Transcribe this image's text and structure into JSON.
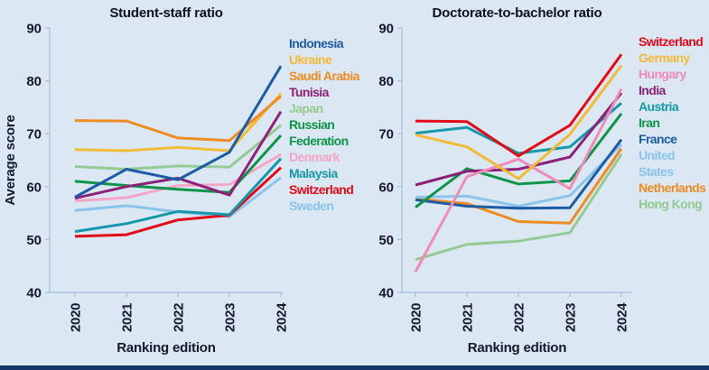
{
  "page": {
    "background": "#dbe8f4",
    "footer_bar_color": "#16356b",
    "axis_line_color": "#a3bfd9",
    "axis_text_color": "#15172b"
  },
  "chart_data": [
    {
      "type": "line",
      "title": "Student-staff ratio",
      "xlabel": "Ranking edition",
      "ylabel": "Average score",
      "x_ticks": [
        "2020",
        "2021",
        "2022",
        "2023",
        "2024"
      ],
      "y_ticks": [
        90,
        80,
        70,
        60,
        50,
        40
      ],
      "ylim": [
        40,
        90
      ],
      "grid": false,
      "legend_position": "right",
      "series": [
        {
          "name": "Indonesia",
          "color": "#1d5ba4",
          "values": [
            58.0,
            63.3,
            61.3,
            66.5,
            82.8
          ]
        },
        {
          "name": "Ukraine",
          "color": "#f3ba37",
          "values": [
            67.0,
            66.8,
            67.4,
            66.8,
            77.6
          ]
        },
        {
          "name": "Saudi Arabia",
          "color": "#ee8b23",
          "values": [
            72.5,
            72.4,
            69.2,
            68.7,
            77.1
          ]
        },
        {
          "name": "Tunisia",
          "color": "#8d2077",
          "values": [
            57.8,
            60.0,
            61.6,
            58.4,
            74.2
          ]
        },
        {
          "name": "Japan",
          "color": "#95ca93",
          "values": [
            63.8,
            63.3,
            63.9,
            63.7,
            71.6
          ]
        },
        {
          "name": "Russian Federation",
          "legend": "Russian\nFederation",
          "color": "#0e9448",
          "values": [
            61.0,
            60.2,
            59.5,
            58.9,
            69.7
          ]
        },
        {
          "name": "Denmark",
          "color": "#f4a6c6",
          "values": [
            57.3,
            57.9,
            60.2,
            60.4,
            66.1
          ]
        },
        {
          "name": "Malaysia",
          "color": "#1697ab",
          "values": [
            51.5,
            53.0,
            55.3,
            54.7,
            65.3
          ]
        },
        {
          "name": "Switzerland",
          "color": "#e30a18",
          "values": [
            50.6,
            50.9,
            53.7,
            54.6,
            63.6
          ]
        },
        {
          "name": "Sweden",
          "color": "#8ac4ea",
          "values": [
            55.5,
            56.4,
            55.2,
            54.3,
            61.7
          ]
        }
      ],
      "z_order": [
        9,
        8,
        7,
        6,
        4,
        5,
        3,
        1,
        2,
        0
      ]
    },
    {
      "type": "line",
      "title": "Doctorate-to-bachelor ratio",
      "xlabel": "Ranking edition",
      "ylabel": "",
      "x_ticks": [
        "2020",
        "2021",
        "2022",
        "2023",
        "2024"
      ],
      "y_ticks": [
        90,
        80,
        70,
        60,
        50,
        40
      ],
      "ylim": [
        40,
        90
      ],
      "grid": false,
      "legend_position": "right",
      "series": [
        {
          "name": "Switzerland",
          "color": "#e30a18",
          "values": [
            72.4,
            72.3,
            65.8,
            71.6,
            85.0
          ]
        },
        {
          "name": "Germany",
          "color": "#f3ba37",
          "values": [
            69.8,
            67.5,
            61.5,
            69.9,
            82.9
          ]
        },
        {
          "name": "Hungary",
          "color": "#ef8ab9",
          "values": [
            43.9,
            61.9,
            65.2,
            59.6,
            78.5
          ]
        },
        {
          "name": "India",
          "color": "#8d2077",
          "values": [
            60.3,
            62.9,
            63.3,
            65.6,
            77.7
          ]
        },
        {
          "name": "Austria",
          "color": "#1697ab",
          "values": [
            70.1,
            71.2,
            66.3,
            67.5,
            75.8
          ]
        },
        {
          "name": "Iran",
          "color": "#0e9448",
          "values": [
            56.1,
            63.4,
            60.5,
            61.1,
            73.8
          ]
        },
        {
          "name": "France",
          "color": "#1d5ba4",
          "values": [
            57.5,
            56.3,
            55.9,
            56.0,
            68.9
          ]
        },
        {
          "name": "United States",
          "color": "#8ac4ea",
          "values": [
            58.0,
            58.2,
            56.3,
            58.3,
            68.0
          ]
        },
        {
          "name": "Netherlands",
          "color": "#ee8b23",
          "values": [
            57.7,
            56.8,
            53.4,
            53.1,
            67.2
          ]
        },
        {
          "name": "Hong Kong",
          "color": "#95ca93",
          "values": [
            46.2,
            49.1,
            49.7,
            51.3,
            66.1
          ]
        }
      ],
      "z_order": [
        9,
        8,
        7,
        6,
        5,
        4,
        3,
        2,
        1,
        0
      ]
    }
  ]
}
